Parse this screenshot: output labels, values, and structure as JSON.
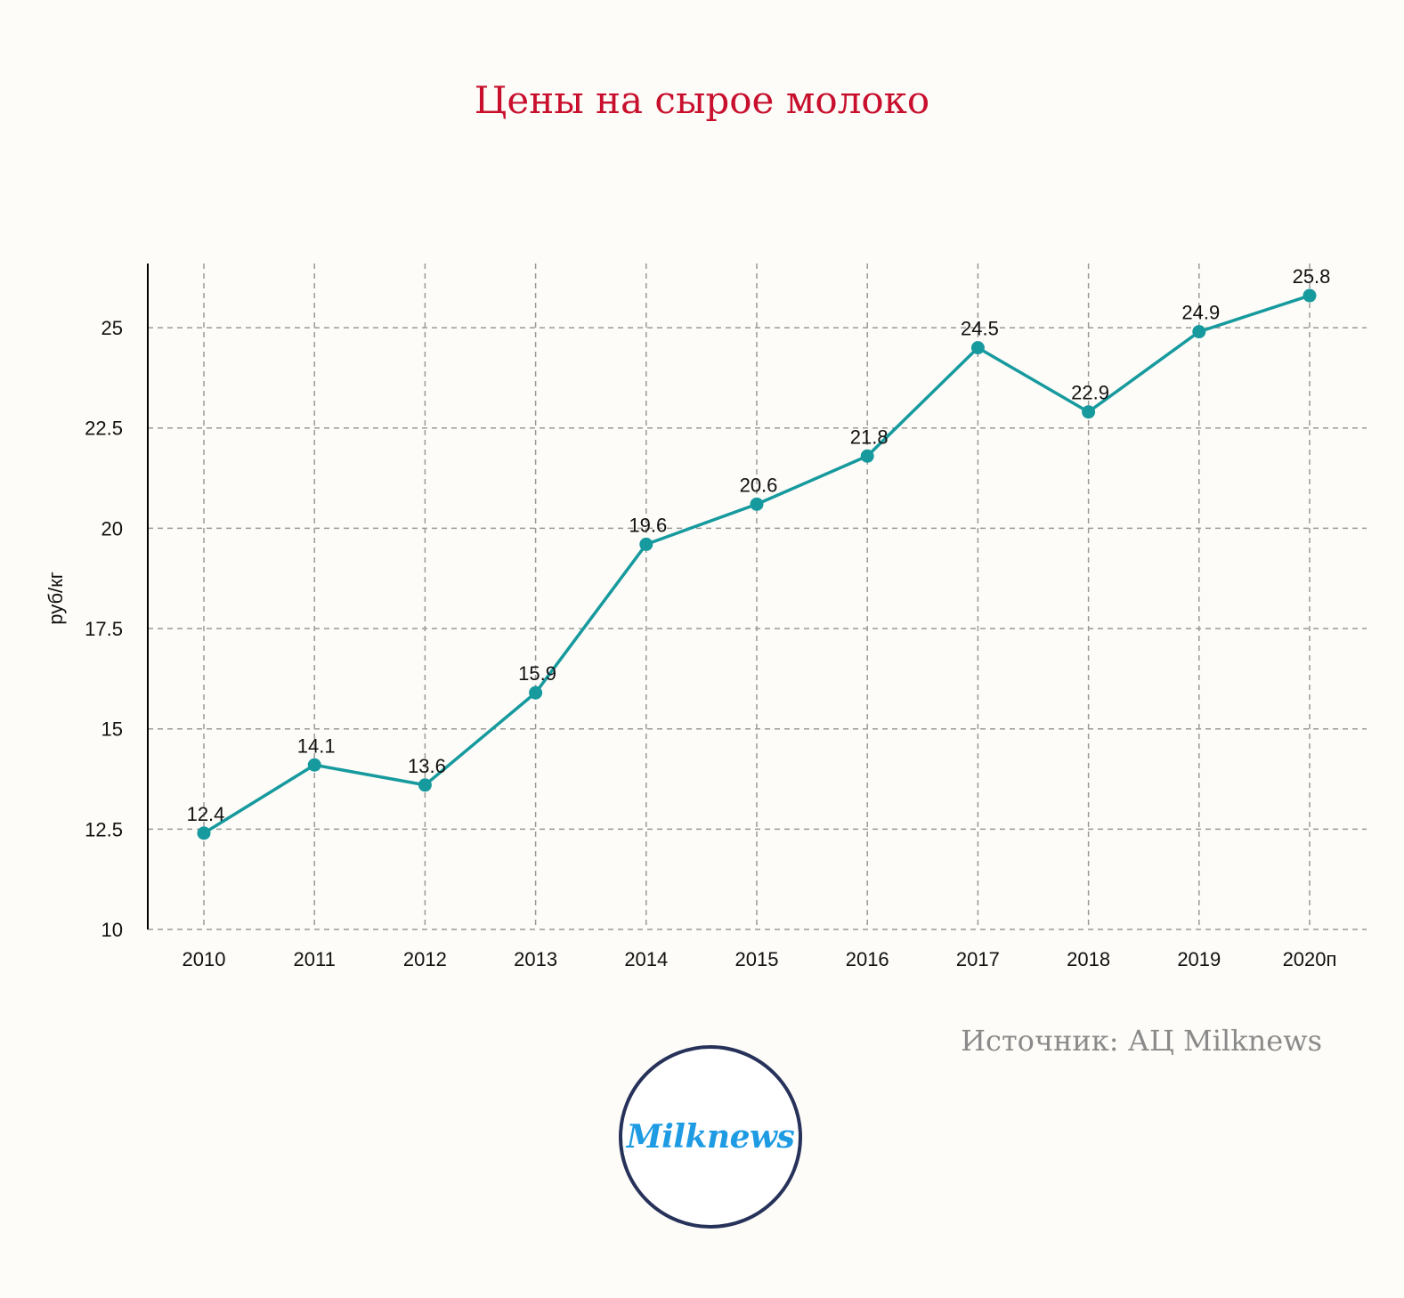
{
  "title": "Цены на сырое молоко",
  "source": "Источник: АЦ Milknews",
  "logo": {
    "text": "Milknews",
    "text_color": "#1e9be3",
    "ring_color": "#27325a"
  },
  "colors": {
    "title": "#c8102e",
    "line": "#169a9e",
    "grid": "#999999",
    "axis": "#000000",
    "background": "#fdfcf8"
  },
  "chart_data": {
    "type": "line",
    "categories": [
      "2010",
      "2011",
      "2012",
      "2013",
      "2014",
      "2015",
      "2016",
      "2017",
      "2018",
      "2019",
      "2020п"
    ],
    "series": [
      {
        "values": [
          12.4,
          14.1,
          13.6,
          15.9,
          19.6,
          20.6,
          21.8,
          24.5,
          22.9,
          24.9,
          25.8
        ]
      }
    ],
    "data_labels": [
      "12.4",
      "14.1",
      "13.6",
      "15.9",
      "19.6",
      "20.6",
      "21.8",
      "24.5",
      "22.9",
      "24.9",
      "25.8"
    ],
    "ylabel": "руб/кг",
    "xlabel": "",
    "ylim": [
      10,
      26.6
    ],
    "yticks": [
      10,
      12.5,
      15,
      17.5,
      20,
      22.5,
      25
    ],
    "ytick_labels": [
      "10",
      "12.5",
      "15",
      "17.5",
      "20",
      "22.5",
      "25"
    ],
    "grid": true,
    "grid_style": "dashed",
    "legend": "none"
  }
}
